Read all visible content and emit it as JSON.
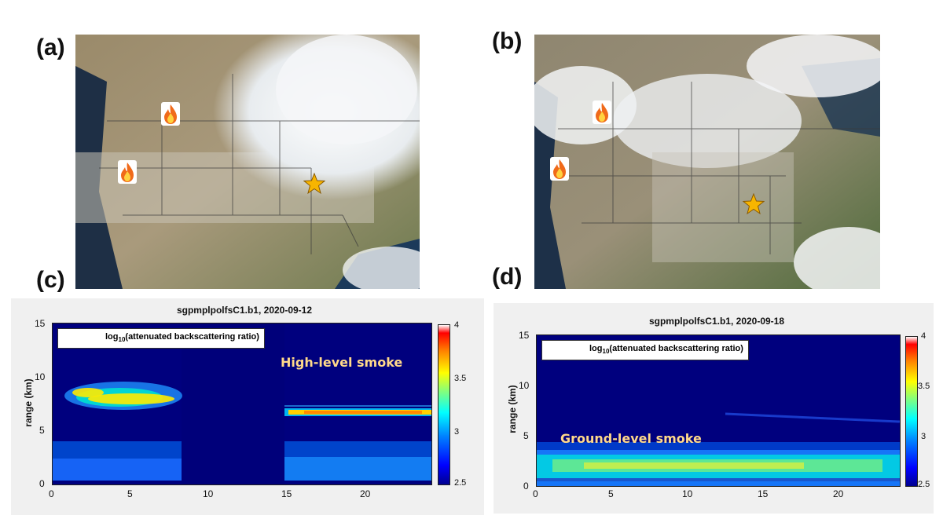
{
  "panel_labels": {
    "a": "(a)",
    "b": "(b)",
    "c": "(c)",
    "d": "(d)"
  },
  "colors": {
    "smoke_annotation": "#ffd98a",
    "star": "#f7b500",
    "plot_background": "#00007e"
  },
  "icons": {
    "fire": "fire-icon",
    "site_marker": "star-icon"
  },
  "lidar_c": {
    "title": "sgpmplpolfsC1.b1, 2020-09-12",
    "legend_prefix": "log",
    "legend_sub": "10",
    "legend_suffix": "(attenuated backscattering ratio)",
    "annotation": "High-level smoke",
    "ylabel": "range (km)",
    "yticks": [
      "15",
      "10",
      "5",
      "0"
    ],
    "xticks": [
      "0",
      "5",
      "10",
      "15",
      "20"
    ],
    "cbar_ticks": [
      "4",
      "3.5",
      "3",
      "2.5"
    ]
  },
  "lidar_d": {
    "title": "sgpmplpolfsC1.b1, 2020-09-18",
    "legend_prefix": "log",
    "legend_sub": "10",
    "legend_suffix": "(attenuated backscattering ratio)",
    "annotation": "Ground-level smoke",
    "ylabel": "range (km)",
    "yticks": [
      "15",
      "10",
      "5",
      "0"
    ],
    "xticks": [
      "0",
      "5",
      "10",
      "15",
      "20"
    ],
    "cbar_ticks": [
      "4",
      "3.5",
      "3",
      "2.5"
    ]
  }
}
